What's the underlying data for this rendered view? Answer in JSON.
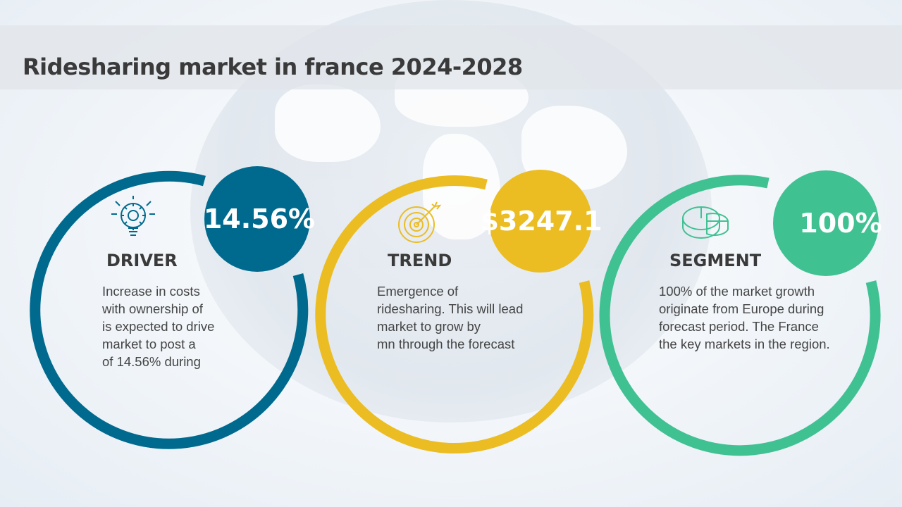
{
  "title": "Ridesharing market in france 2024-2028",
  "colors": {
    "driver": "#006a8e",
    "trend": "#ebbd23",
    "segment": "#40c192"
  },
  "driver": {
    "badge": "14.56%",
    "heading": "DRIVER",
    "icon": "lightbulb-gear-icon",
    "lines": [
      "Increase in costs",
      "with ownership of",
      "is expected to drive",
      "market to post a",
      "of 14.56% during"
    ]
  },
  "trend": {
    "badge": "$3247.1",
    "heading": "TREND",
    "icon": "target-arrow-icon",
    "lines": [
      "Emergence of",
      "ridesharing. This will lead",
      "market to grow by",
      "mn through the forecast"
    ]
  },
  "segment": {
    "badge": "100%",
    "heading": "SEGMENT",
    "icon": "pie-chart-icon",
    "lines": [
      "100% of the market growth",
      "originate from Europe during",
      "forecast period. The France",
      "the key markets in the region."
    ]
  }
}
